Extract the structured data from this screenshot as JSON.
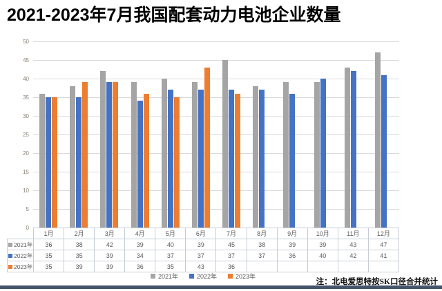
{
  "page": {
    "title": "2021-2023年7月我国配套动力电池企业数量",
    "note": "注：北电爱思特按SK口径合并统计",
    "colors": {
      "grid": "#d9d9d9",
      "axis_text": "#8a8076",
      "table_text": "#595959",
      "table_border": "#c6ccd6",
      "legend_text": "#595959",
      "bottom_bar": "#44546a"
    }
  },
  "chart_data": {
    "type": "bar",
    "title": "2021-2023年7月我国配套动力电池企业数量",
    "categories": [
      "1月",
      "2月",
      "3月",
      "4月",
      "5月",
      "6月",
      "7月",
      "8月",
      "9月",
      "10月",
      "11月",
      "12月"
    ],
    "series": [
      {
        "name": "2021年",
        "color": "#a5a5a5",
        "values": [
          36,
          38,
          42,
          39,
          40,
          39,
          45,
          38,
          39,
          39,
          43,
          47
        ]
      },
      {
        "name": "2022年",
        "color": "#4472c4",
        "values": [
          35,
          35,
          39,
          34,
          37,
          37,
          37,
          37,
          36,
          40,
          42,
          41
        ]
      },
      {
        "name": "2023年",
        "color": "#ed7d31",
        "values": [
          35,
          39,
          39,
          36,
          35,
          43,
          36,
          null,
          null,
          null,
          null,
          null
        ]
      }
    ],
    "xlabel": "",
    "ylabel": "",
    "ylim": [
      0,
      50
    ],
    "ytick_step": 5,
    "grid": true,
    "legend_position": "bottom",
    "data_table_shown": true,
    "annotation": "注：北电爱思特按SK口径合并统计"
  }
}
